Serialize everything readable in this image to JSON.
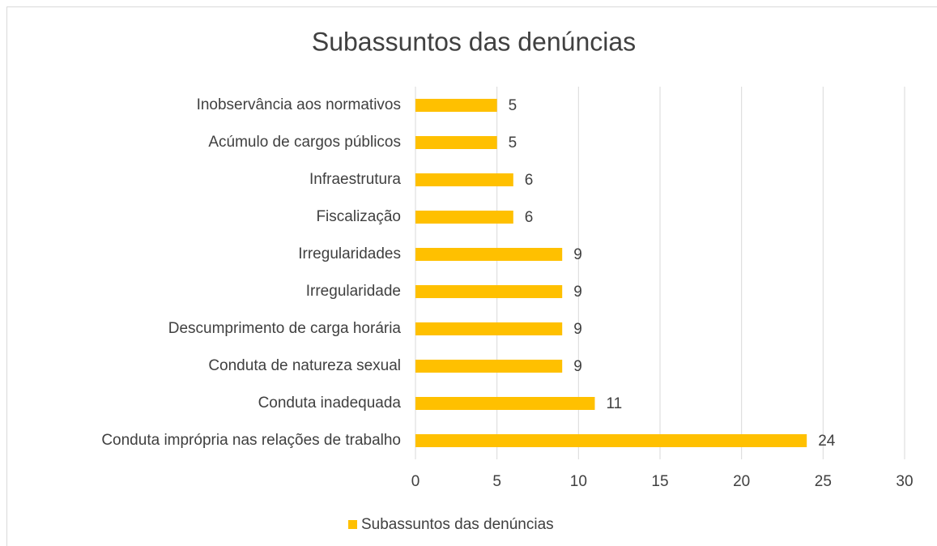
{
  "chart_data": {
    "type": "bar",
    "orientation": "horizontal",
    "title": "Subassuntos das denúncias",
    "categories": [
      "Inobservância aos normativos",
      "Acúmulo de cargos públicos",
      "Infraestrutura",
      "Fiscalização",
      "Irregularidades",
      "Irregularidade",
      "Descumprimento de carga horária",
      "Conduta de natureza sexual",
      "Conduta inadequada",
      "Conduta imprópria nas relações de trabalho"
    ],
    "series": [
      {
        "name": "Subassuntos das denúncias",
        "color": "#ffc000",
        "values": [
          5,
          5,
          6,
          6,
          9,
          9,
          9,
          9,
          11,
          24
        ]
      }
    ],
    "xlim": [
      0,
      30
    ],
    "xticks": [
      0,
      5,
      10,
      15,
      20,
      25,
      30
    ],
    "grid": true,
    "legend": "bottom"
  }
}
